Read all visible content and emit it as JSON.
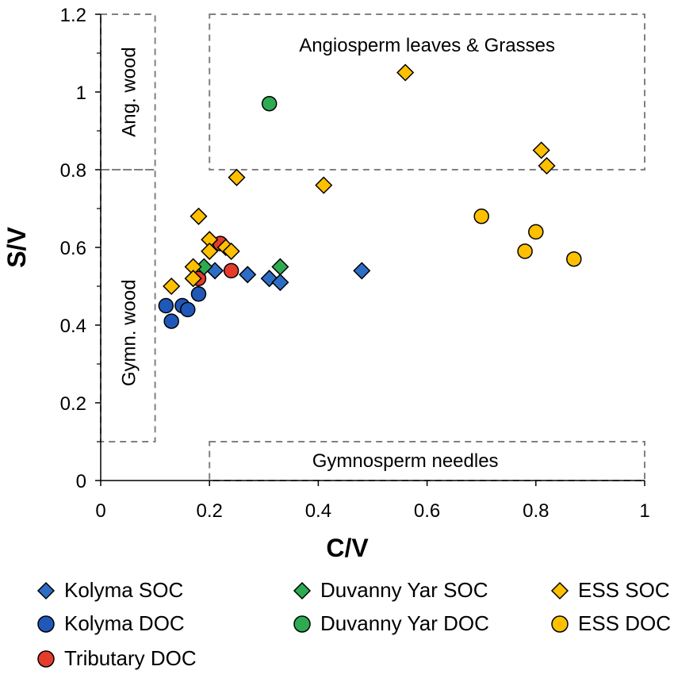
{
  "chart_data": {
    "type": "scatter",
    "title": "",
    "xlabel": "C/V",
    "ylabel": "S/V",
    "xlim": [
      0,
      1
    ],
    "ylim": [
      0,
      1.2
    ],
    "xticks": [
      "0",
      "0.2",
      "0.4",
      "0.6",
      "0.8",
      "1"
    ],
    "yticks": [
      "0",
      "0.2",
      "0.4",
      "0.6",
      "0.8",
      "1",
      "1.2"
    ],
    "grid": false,
    "legend_position": "bottom",
    "regions": [
      {
        "label": "Angiosperm leaves & Grasses",
        "x": [
          0.2,
          1.0
        ],
        "y": [
          0.8,
          1.2
        ]
      },
      {
        "label": "Ang. wood",
        "x": [
          0.0,
          0.1
        ],
        "y": [
          0.8,
          1.2
        ]
      },
      {
        "label": "Gymn. wood",
        "x": [
          0.0,
          0.1
        ],
        "y": [
          0.1,
          0.8
        ]
      },
      {
        "label": "Gymnosperm needles",
        "x": [
          0.2,
          1.0
        ],
        "y": [
          0.0,
          0.1
        ]
      }
    ],
    "series": [
      {
        "name": "Kolyma SOC",
        "marker": "diamond",
        "color": "#2e6dc5",
        "points": [
          [
            0.21,
            0.54
          ],
          [
            0.27,
            0.53
          ],
          [
            0.31,
            0.52
          ],
          [
            0.33,
            0.51
          ],
          [
            0.48,
            0.54
          ]
        ]
      },
      {
        "name": "Kolyma DOC",
        "marker": "circle",
        "color": "#1f58b8",
        "points": [
          [
            0.12,
            0.45
          ],
          [
            0.13,
            0.41
          ],
          [
            0.15,
            0.45
          ],
          [
            0.16,
            0.44
          ],
          [
            0.18,
            0.48
          ]
        ]
      },
      {
        "name": "Tributary DOC",
        "marker": "circle",
        "color": "#e53b2b",
        "points": [
          [
            0.18,
            0.52
          ],
          [
            0.22,
            0.61
          ],
          [
            0.24,
            0.54
          ]
        ]
      },
      {
        "name": "Duvanny Yar SOC",
        "marker": "diamond",
        "color": "#2eab52",
        "points": [
          [
            0.19,
            0.55
          ],
          [
            0.33,
            0.55
          ]
        ]
      },
      {
        "name": "Duvanny Yar DOC",
        "marker": "circle",
        "color": "#2eab52",
        "points": [
          [
            0.31,
            0.97
          ]
        ]
      },
      {
        "name": "ESS SOC",
        "marker": "diamond",
        "color": "#ffc000",
        "points": [
          [
            0.13,
            0.5
          ],
          [
            0.17,
            0.55
          ],
          [
            0.17,
            0.52
          ],
          [
            0.18,
            0.68
          ],
          [
            0.2,
            0.62
          ],
          [
            0.2,
            0.59
          ],
          [
            0.23,
            0.6
          ],
          [
            0.24,
            0.59
          ],
          [
            0.25,
            0.78
          ],
          [
            0.41,
            0.76
          ],
          [
            0.56,
            1.05
          ],
          [
            0.81,
            0.85
          ],
          [
            0.82,
            0.81
          ]
        ]
      },
      {
        "name": "ESS DOC",
        "marker": "circle",
        "color": "#ffc000",
        "points": [
          [
            0.7,
            0.68
          ],
          [
            0.78,
            0.59
          ],
          [
            0.8,
            0.64
          ],
          [
            0.87,
            0.57
          ]
        ]
      }
    ]
  }
}
